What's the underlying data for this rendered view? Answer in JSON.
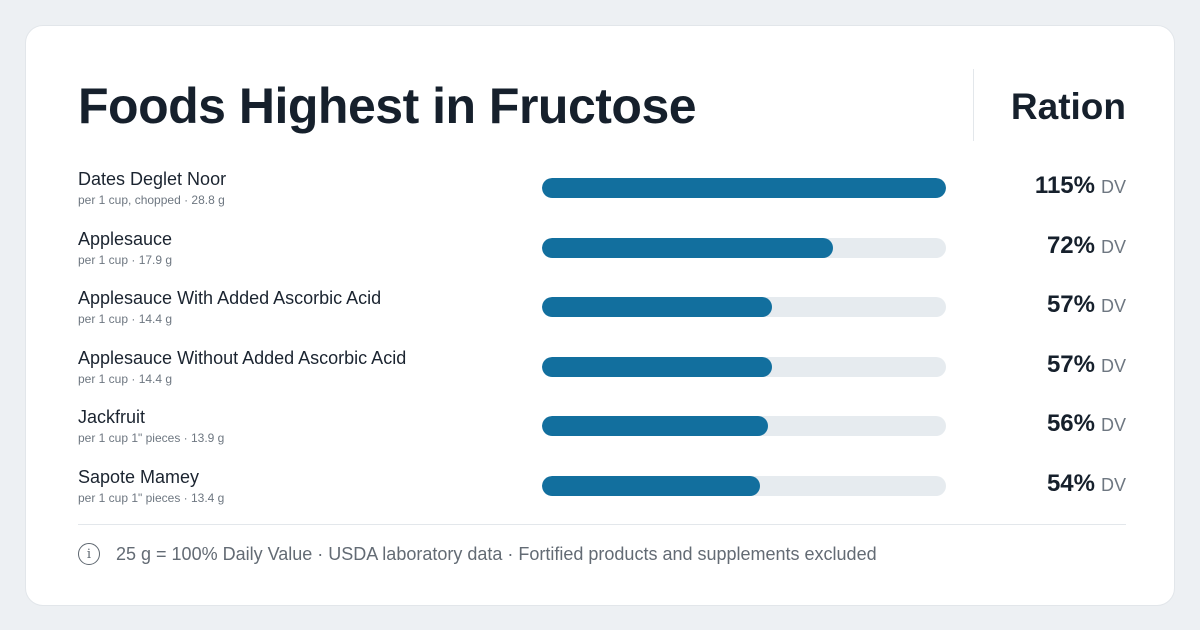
{
  "title": "Foods Highest in Fructose",
  "column_header": "Ration",
  "unit_label": "DV",
  "footnote": "25 g = 100% Daily Value · USDA laboratory data · Fortified products and supplements excluded",
  "icons": {
    "info": "info-icon"
  },
  "colors": {
    "bar": "#126f9e",
    "track": "#e6ebef",
    "background": "#edf0f3"
  },
  "chart_data": {
    "type": "bar",
    "orientation": "horizontal",
    "title": "Foods Highest in Fructose",
    "bar_max_percent": 100,
    "categories": [
      "Dates Deglet Noor",
      "Applesauce",
      "Applesauce With Added Ascorbic Acid",
      "Applesauce Without Added Ascorbic Acid",
      "Jackfruit",
      "Sapote Mamey"
    ],
    "portions": [
      "per 1 cup, chopped · 28.8 g",
      "per 1 cup · 17.9 g",
      "per 1 cup · 14.4 g",
      "per 1 cup · 14.4 g",
      "per 1 cup 1\" pieces · 13.9 g",
      "per 1 cup 1\" pieces · 13.4 g"
    ],
    "values": [
      115,
      72,
      57,
      57,
      56,
      54
    ],
    "value_labels": [
      "115%",
      "72%",
      "57%",
      "57%",
      "56%",
      "54%"
    ]
  }
}
